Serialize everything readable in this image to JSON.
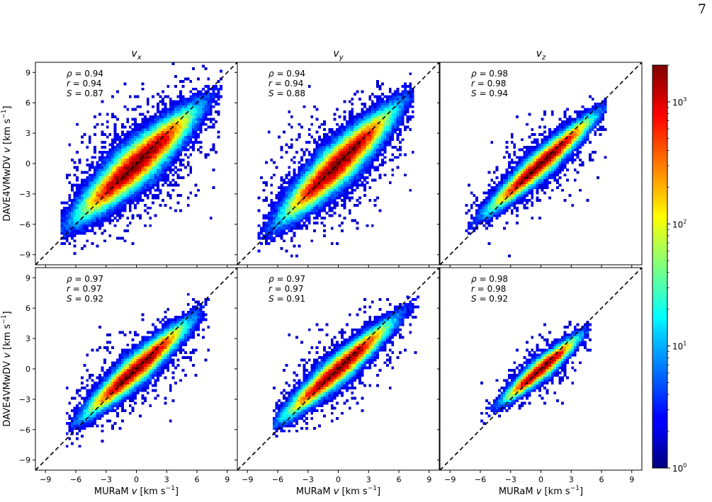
{
  "page_number": "7",
  "chart_data": {
    "type": "heatmap",
    "layout": "2x3 grid of 2D histograms (density scatter) with shared log colorbar",
    "x_axis": {
      "label_pre": "MURaM ",
      "label_var": "v",
      "label_post": " [km s",
      "label_exp": "−1",
      "label_end": "]",
      "range": [
        -10,
        10
      ],
      "ticks": [
        -9,
        -6,
        -3,
        0,
        3,
        6,
        9
      ],
      "tick_labels": [
        "−9",
        "−6",
        "−3",
        "0",
        "3",
        "6",
        "9"
      ]
    },
    "y_axis": {
      "label_pre": "DAVE4VMwDV ",
      "label_var": "v",
      "label_post": " [km s",
      "label_exp": "−1",
      "label_end": "]",
      "range": [
        -10,
        10
      ],
      "ticks": [
        -9,
        -6,
        -3,
        0,
        3,
        6,
        9
      ],
      "tick_labels": [
        "−9",
        "−6",
        "−3",
        "0",
        "3",
        "6",
        "9"
      ]
    },
    "column_titles": [
      {
        "var": "v",
        "sub": "x"
      },
      {
        "var": "v",
        "sub": "y"
      },
      {
        "var": "v",
        "sub": "z"
      }
    ],
    "reference_line": "y = x (black dashed)",
    "colorbar": {
      "scale": "log",
      "range": [
        1,
        2000
      ],
      "colormap": "jet",
      "ticks": [
        {
          "value": 1,
          "base": "10",
          "exp": "0"
        },
        {
          "value": 10,
          "base": "10",
          "exp": "1"
        },
        {
          "value": 100,
          "base": "10",
          "exp": "2"
        },
        {
          "value": 1000,
          "base": "10",
          "exp": "3"
        }
      ]
    },
    "panels": [
      {
        "row": 0,
        "col": 0,
        "stats": {
          "rho": "0.94",
          "r": "0.94",
          "S": "0.87"
        },
        "distribution": {
          "slope": 0.92,
          "spread": 1.55,
          "x_range": [
            -7.5,
            8.5
          ],
          "extent": 8.2
        }
      },
      {
        "row": 0,
        "col": 1,
        "stats": {
          "rho": "0.94",
          "r": "0.94",
          "S": "0.88"
        },
        "distribution": {
          "slope": 0.98,
          "spread": 1.5,
          "x_range": [
            -8,
            7.5
          ],
          "extent": 8.0
        }
      },
      {
        "row": 0,
        "col": 2,
        "stats": {
          "rho": "0.98",
          "r": "0.98",
          "S": "0.94"
        },
        "distribution": {
          "slope": 0.9,
          "spread": 0.95,
          "x_range": [
            -7.5,
            6.5
          ],
          "extent": 7.2
        }
      },
      {
        "row": 1,
        "col": 0,
        "stats": {
          "rho": "0.97",
          "r": "0.97",
          "S": "0.92"
        },
        "distribution": {
          "slope": 0.9,
          "spread": 1.05,
          "x_range": [
            -7,
            7.3
          ],
          "extent": 7.0
        }
      },
      {
        "row": 1,
        "col": 1,
        "stats": {
          "rho": "0.97",
          "r": "0.97",
          "S": "0.91"
        },
        "distribution": {
          "slope": 0.88,
          "spread": 1.0,
          "x_range": [
            -6.5,
            8
          ],
          "extent": 7.3
        }
      },
      {
        "row": 1,
        "col": 2,
        "stats": {
          "rho": "0.98",
          "r": "0.98",
          "S": "0.92"
        },
        "distribution": {
          "slope": 0.85,
          "spread": 0.75,
          "x_range": [
            -6.5,
            5
          ],
          "extent": 5.0
        }
      }
    ]
  }
}
